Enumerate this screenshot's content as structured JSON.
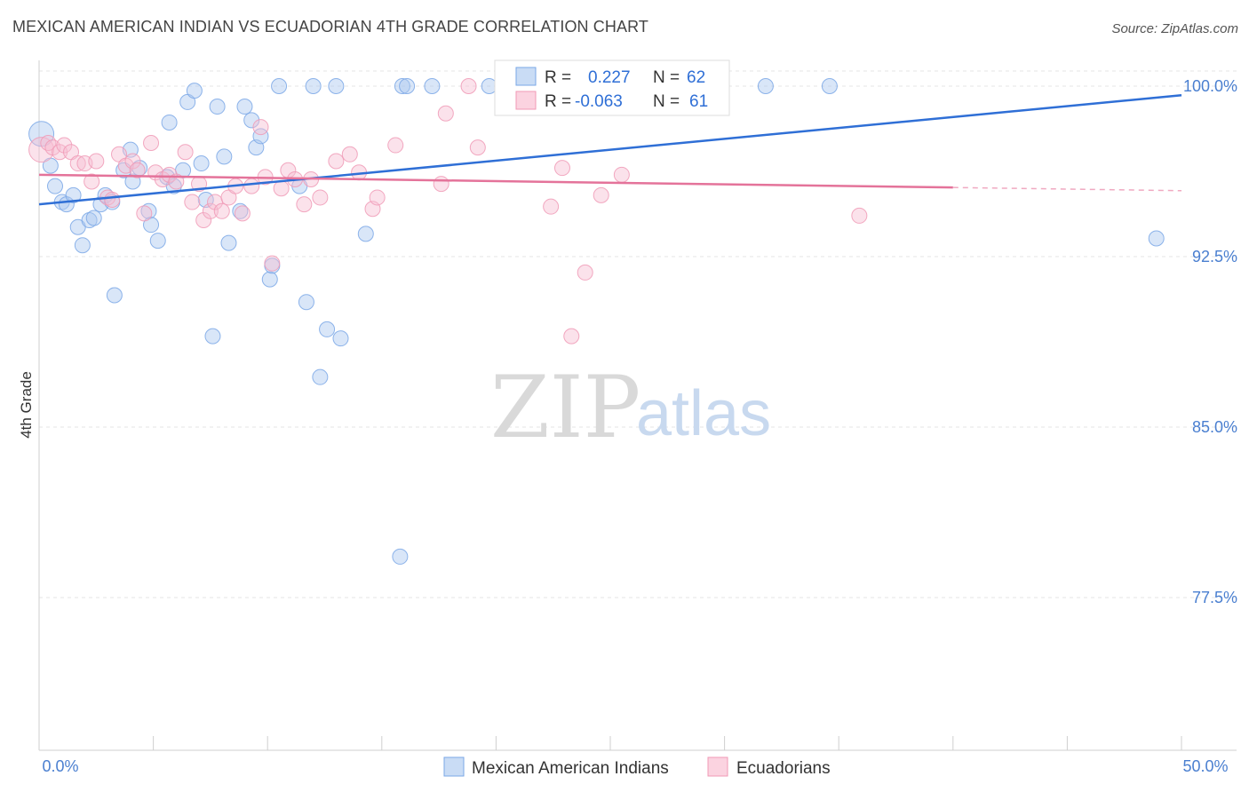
{
  "header": {
    "title": "MEXICAN AMERICAN INDIAN VS ECUADORIAN 4TH GRADE CORRELATION CHART",
    "source": "Source: ZipAtlas.com"
  },
  "watermark": {
    "zip": "ZIP",
    "atlas": "atlas"
  },
  "legend_box": {
    "rows": [
      {
        "r_label": "R =",
        "r_value": "0.227",
        "n_label": "N =",
        "n_value": "62",
        "color": "#7aa7e6"
      },
      {
        "r_label": "R =",
        "r_value": "-0.063",
        "n_label": "N =",
        "n_value": "61",
        "color": "#f09ab6"
      }
    ]
  },
  "chart_data": {
    "type": "scatter",
    "title": "MEXICAN AMERICAN INDIAN VS ECUADORIAN 4TH GRADE CORRELATION CHART",
    "xlabel": "",
    "ylabel": "4th Grade",
    "xlim": [
      0,
      50
    ],
    "ylim": [
      70,
      100.8
    ],
    "x_tick_labels": [
      "0.0%",
      "50.0%"
    ],
    "y_ticks": [
      77.5,
      85.0,
      92.5,
      100.0
    ],
    "y_tick_labels": [
      "77.5%",
      "85.0%",
      "92.5%",
      "100.0%"
    ],
    "grid": true,
    "legend_position": "bottom-center",
    "series": [
      {
        "name": "Mexican American Indians",
        "color": "#7aa7e6",
        "fill": "#aac8f0",
        "trend": {
          "x": [
            0,
            50
          ],
          "y": [
            94.8,
            99.6
          ],
          "dashed_from": null
        },
        "points": [
          [
            0.1,
            97.9
          ],
          [
            0.5,
            96.5
          ],
          [
            0.7,
            95.6
          ],
          [
            1.0,
            94.9
          ],
          [
            1.2,
            94.8
          ],
          [
            1.5,
            95.2
          ],
          [
            1.7,
            93.8
          ],
          [
            1.9,
            93.0
          ],
          [
            2.2,
            94.1
          ],
          [
            2.4,
            94.2
          ],
          [
            2.7,
            94.8
          ],
          [
            2.9,
            95.2
          ],
          [
            3.2,
            94.9
          ],
          [
            3.3,
            90.8
          ],
          [
            3.7,
            96.3
          ],
          [
            4.0,
            97.2
          ],
          [
            4.1,
            95.8
          ],
          [
            4.4,
            96.4
          ],
          [
            4.8,
            94.5
          ],
          [
            4.9,
            93.9
          ],
          [
            5.2,
            93.2
          ],
          [
            5.6,
            96.0
          ],
          [
            5.7,
            98.4
          ],
          [
            5.9,
            95.6
          ],
          [
            6.3,
            96.3
          ],
          [
            6.5,
            99.3
          ],
          [
            6.8,
            99.8
          ],
          [
            7.1,
            96.6
          ],
          [
            7.3,
            95.0
          ],
          [
            7.6,
            89.0
          ],
          [
            7.8,
            99.1
          ],
          [
            8.1,
            96.9
          ],
          [
            8.3,
            93.1
          ],
          [
            8.8,
            94.5
          ],
          [
            9.0,
            99.1
          ],
          [
            9.3,
            98.5
          ],
          [
            9.5,
            97.3
          ],
          [
            9.7,
            97.8
          ],
          [
            10.1,
            91.5
          ],
          [
            10.2,
            92.1
          ],
          [
            10.5,
            100.0
          ],
          [
            11.4,
            95.6
          ],
          [
            11.7,
            90.5
          ],
          [
            12.0,
            100.0
          ],
          [
            12.3,
            87.2
          ],
          [
            12.6,
            89.3
          ],
          [
            13.0,
            100.0
          ],
          [
            13.2,
            88.9
          ],
          [
            14.3,
            93.5
          ],
          [
            15.8,
            79.3
          ],
          [
            15.9,
            100.0
          ],
          [
            16.1,
            100.0
          ],
          [
            17.2,
            100.0
          ],
          [
            19.7,
            100.0
          ],
          [
            22.4,
            100.0
          ],
          [
            25.8,
            100.0
          ],
          [
            26.5,
            100.0
          ],
          [
            27.7,
            100.0
          ],
          [
            29.8,
            100.0
          ],
          [
            31.8,
            100.0
          ],
          [
            34.6,
            100.0
          ],
          [
            48.9,
            93.3
          ]
        ]
      },
      {
        "name": "Ecuadorians",
        "color": "#f09ab6",
        "fill": "#f7bfd2",
        "trend": {
          "x": [
            0,
            50
          ],
          "y": [
            96.1,
            95.4
          ],
          "dashed_from": 40
        },
        "points": [
          [
            0.1,
            97.2
          ],
          [
            0.4,
            97.5
          ],
          [
            0.6,
            97.3
          ],
          [
            0.9,
            97.1
          ],
          [
            1.1,
            97.4
          ],
          [
            1.4,
            97.1
          ],
          [
            1.7,
            96.6
          ],
          [
            2.0,
            96.6
          ],
          [
            2.3,
            95.8
          ],
          [
            2.5,
            96.7
          ],
          [
            3.0,
            95.1
          ],
          [
            3.2,
            95.0
          ],
          [
            3.5,
            97.0
          ],
          [
            3.8,
            96.5
          ],
          [
            4.1,
            96.7
          ],
          [
            4.3,
            96.3
          ],
          [
            4.6,
            94.4
          ],
          [
            4.9,
            97.5
          ],
          [
            5.1,
            96.2
          ],
          [
            5.4,
            95.9
          ],
          [
            5.7,
            96.1
          ],
          [
            6.0,
            95.8
          ],
          [
            6.4,
            97.1
          ],
          [
            6.7,
            94.9
          ],
          [
            7.0,
            95.7
          ],
          [
            7.2,
            94.1
          ],
          [
            7.5,
            94.5
          ],
          [
            7.7,
            94.9
          ],
          [
            8.0,
            94.5
          ],
          [
            8.3,
            95.1
          ],
          [
            8.6,
            95.6
          ],
          [
            8.9,
            94.4
          ],
          [
            9.3,
            95.6
          ],
          [
            9.7,
            98.2
          ],
          [
            9.9,
            96.0
          ],
          [
            10.2,
            92.2
          ],
          [
            10.6,
            95.5
          ],
          [
            10.9,
            96.3
          ],
          [
            11.2,
            95.9
          ],
          [
            11.6,
            94.8
          ],
          [
            11.9,
            95.9
          ],
          [
            12.3,
            95.1
          ],
          [
            13.0,
            96.7
          ],
          [
            13.6,
            97.0
          ],
          [
            14.0,
            96.2
          ],
          [
            14.6,
            94.6
          ],
          [
            14.8,
            95.1
          ],
          [
            15.6,
            97.4
          ],
          [
            17.6,
            95.7
          ],
          [
            17.8,
            98.8
          ],
          [
            18.8,
            100.0
          ],
          [
            19.2,
            97.3
          ],
          [
            21.0,
            100.0
          ],
          [
            22.4,
            94.7
          ],
          [
            22.9,
            96.4
          ],
          [
            23.3,
            89.0
          ],
          [
            23.9,
            91.8
          ],
          [
            24.6,
            95.2
          ],
          [
            25.5,
            96.1
          ],
          [
            26.8,
            100.0
          ],
          [
            35.9,
            94.3
          ]
        ]
      }
    ]
  }
}
